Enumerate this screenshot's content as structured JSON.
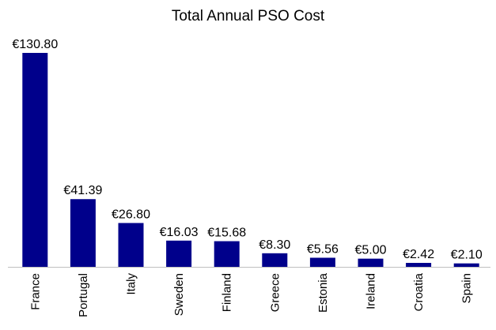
{
  "chart_data": {
    "type": "bar",
    "title": "Total Annual PSO Cost",
    "xlabel": "",
    "ylabel": "",
    "categories": [
      "France",
      "Portugal",
      "Italy",
      "Sweden",
      "Finland",
      "Greece",
      "Estonia",
      "Ireland",
      "Croatia",
      "Spain"
    ],
    "values": [
      130.8,
      41.39,
      26.8,
      16.03,
      15.68,
      8.3,
      5.56,
      5.0,
      2.42,
      2.1
    ],
    "data_labels": [
      "€130.80",
      "€41.39",
      "€26.80",
      "€16.03",
      "€15.68",
      "€8.30",
      "€5.56",
      "€5.00",
      "€2.42",
      "€2.10"
    ],
    "ylim": [
      0,
      130.8
    ],
    "grid": false,
    "legend": "none",
    "bar_color": "#00008B",
    "axis_color": "#BFBFBF"
  }
}
